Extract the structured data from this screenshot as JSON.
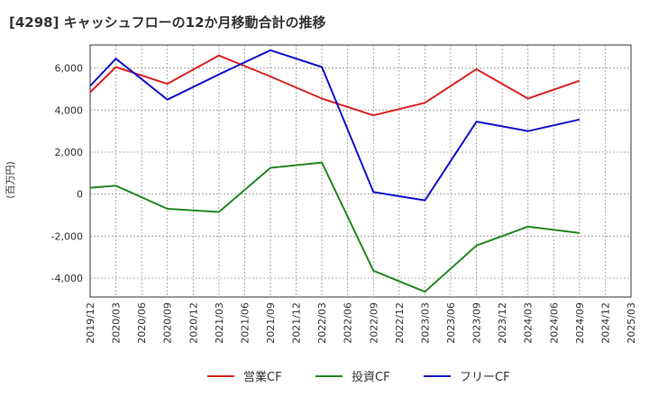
{
  "chart_data": {
    "type": "line",
    "title": "[4298]  キャッシュフローの12か月移動合計の推移",
    "ylabel": "(百万円)",
    "xlabel": "",
    "ylim": [
      -4900,
      7100
    ],
    "yticks": [
      6000,
      4000,
      2000,
      0,
      -2000,
      -4000
    ],
    "ytick_labels": [
      "6,000",
      "4,000",
      "2,000",
      "0",
      "-2,000",
      "-4,000"
    ],
    "xticks": [
      "2019/12",
      "2020/03",
      "2020/06",
      "2020/09",
      "2020/12",
      "2021/03",
      "2021/06",
      "2021/09",
      "2021/12",
      "2022/03",
      "2022/06",
      "2022/09",
      "2022/12",
      "2023/03",
      "2023/06",
      "2023/09",
      "2023/12",
      "2024/03",
      "2024/06",
      "2024/09",
      "2024/12",
      "2025/03"
    ],
    "grid": true,
    "legend_position": "bottom",
    "series": [
      {
        "name": "営業CF",
        "color": "#dd2222",
        "x": [
          "2019/12",
          "2020/03",
          "2020/09",
          "2021/03",
          "2021/09",
          "2022/03",
          "2022/09",
          "2023/03",
          "2023/09",
          "2024/03",
          "2024/09"
        ],
        "values": [
          4850,
          6050,
          5250,
          6600,
          5600,
          4550,
          3750,
          4350,
          5950,
          4550,
          5400
        ]
      },
      {
        "name": "投資CF",
        "color": "#228822",
        "x": [
          "2019/12",
          "2020/03",
          "2020/09",
          "2021/03",
          "2021/09",
          "2022/03",
          "2022/09",
          "2023/03",
          "2023/09",
          "2024/03",
          "2024/09"
        ],
        "values": [
          300,
          400,
          -700,
          -850,
          1250,
          1500,
          -3650,
          -4650,
          -2450,
          -1550,
          -1850
        ]
      },
      {
        "name": "フリーCF",
        "color": "#1111cc",
        "x": [
          "2019/12",
          "2020/03",
          "2020/09",
          "2021/03",
          "2021/09",
          "2022/03",
          "2022/09",
          "2023/03",
          "2023/09",
          "2024/03",
          "2024/09"
        ],
        "values": [
          5150,
          6450,
          4500,
          5700,
          6850,
          6050,
          100,
          -300,
          3450,
          3000,
          3550
        ]
      }
    ]
  }
}
